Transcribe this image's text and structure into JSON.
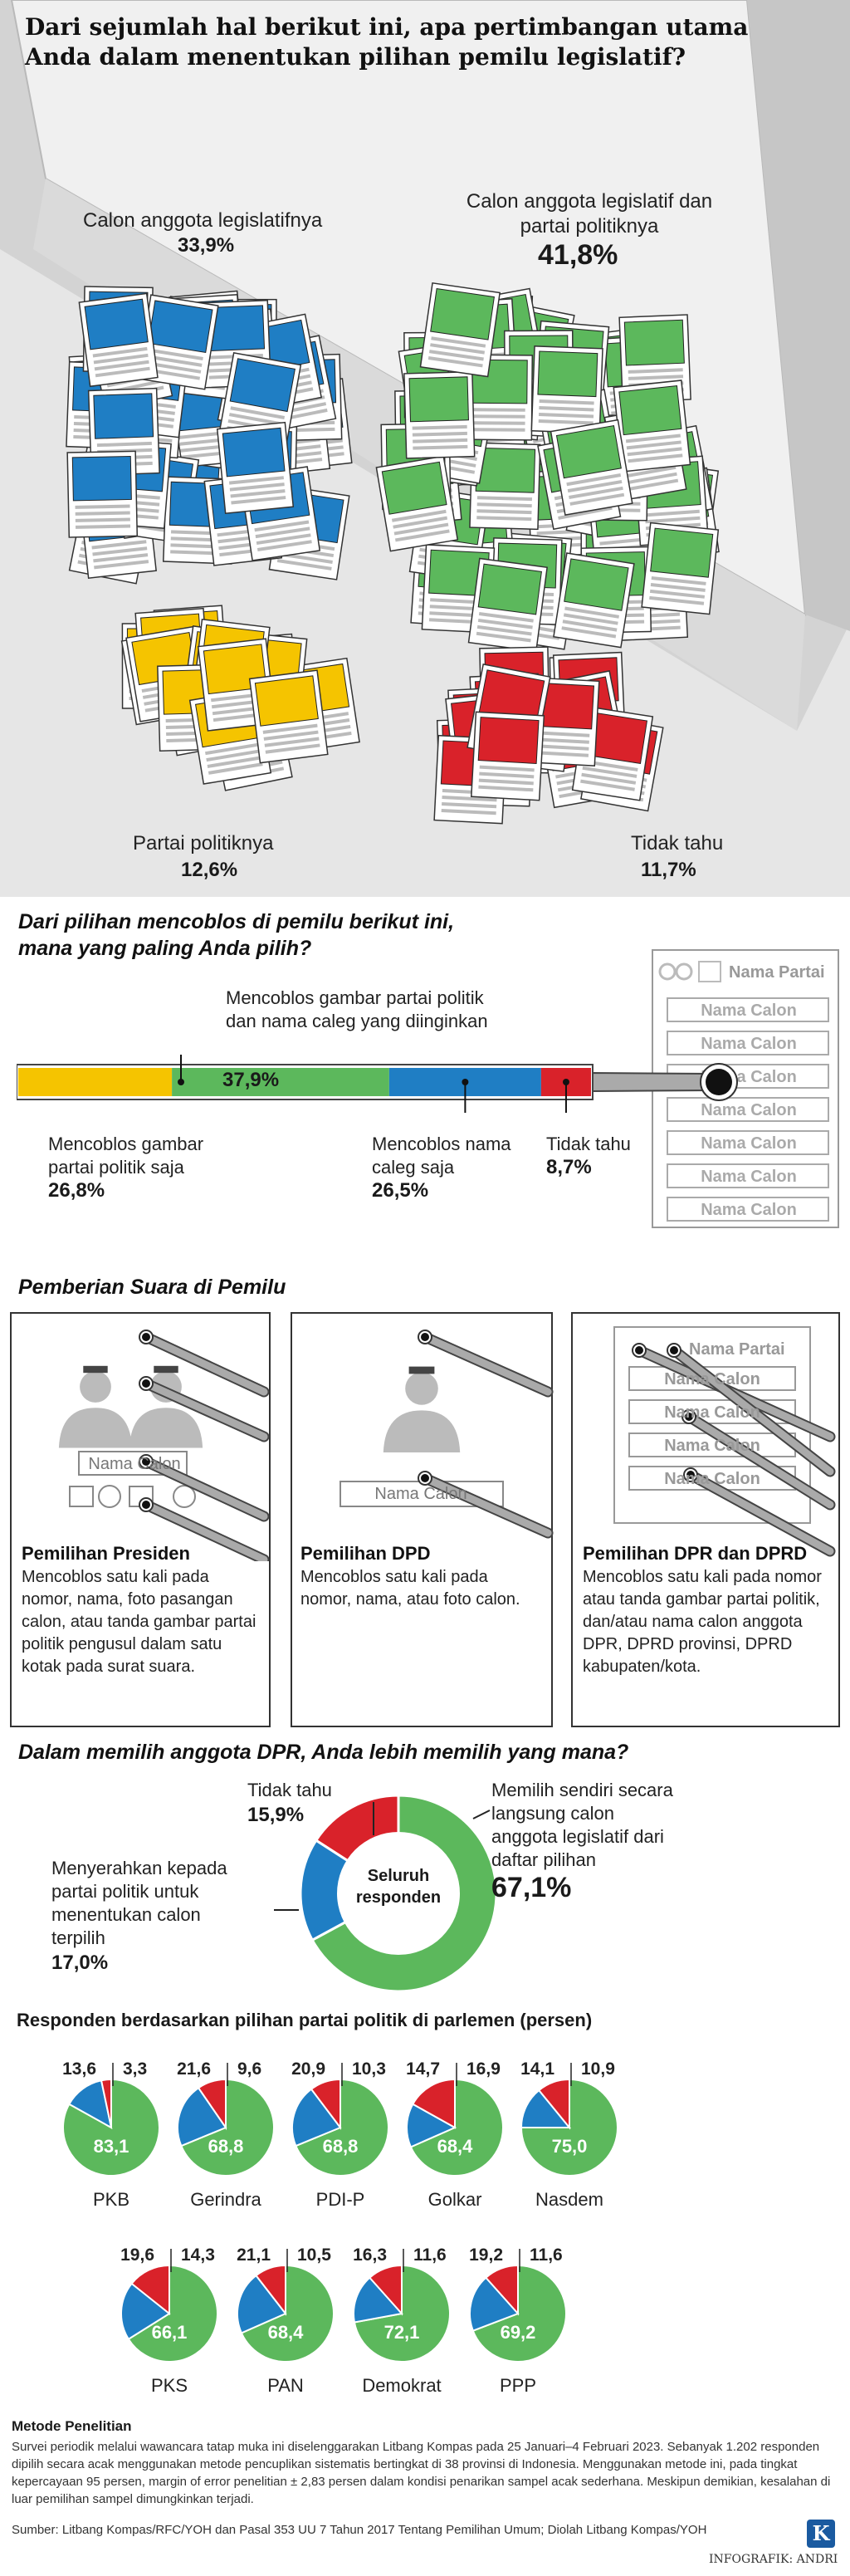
{
  "section1": {
    "question": [
      "Dari sejumlah hal berikut ini, apa pertimbangan utama",
      "Anda dalam menentukan pilihan pemilu legislatif?"
    ],
    "categories": [
      {
        "label": "Calon anggota legislatifnya",
        "value": "33,9%"
      },
      {
        "label": "Calon anggota legislatif dan partai politiknya",
        "value": "41,8%"
      },
      {
        "label": "Partai politiknya",
        "value": "12,6%"
      },
      {
        "label": "Tidak tahu",
        "value": "11,7%"
      }
    ]
  },
  "section2": {
    "question": [
      "Dari pilihan mencoblos di pemilu berikut ini,",
      "mana yang paling Anda pilih?"
    ],
    "labels": {
      "both": "Mencoblos gambar partai politik dan nama caleg yang diinginkan",
      "party": "Mencoblos gambar partai politik saja",
      "caleg": "Mencoblos nama caleg saja",
      "dk": "Tidak tahu"
    },
    "ballot_header": "Nama Partai",
    "ballot_row": "Nama Calon"
  },
  "section3": {
    "title": "Pemberian Suara di Pemilu",
    "panels": [
      {
        "title": "Pemilihan Presiden",
        "text": "Mencoblos satu kali pada nomor, nama, foto pasangan calon, atau tanda gambar partai politik pengusul dalam satu kotak pada surat suara.",
        "box_label": "Nama Calon"
      },
      {
        "title": "Pemilihan DPD",
        "text": "Mencoblos satu kali pada nomor, nama, atau foto calon.",
        "box_label": "Nama Calon"
      },
      {
        "title": "Pemilihan DPR dan DPRD",
        "text": "Mencoblos satu kali pada nomor atau tanda gambar partai politik, dan/atau nama calon anggota DPR, DPRD provinsi, DPRD kabupaten/kota.",
        "box_label": "Nama Partai",
        "row_label": "Nama Calon"
      }
    ]
  },
  "section4": {
    "question": "Dalam memilih anggota DPR, Anda lebih memilih yang mana?",
    "center_label": "Seluruh responden",
    "labels": {
      "dk": "Tidak tahu",
      "self": "Memilih sendiri secara langsung calon anggota legislatif dari daftar pilihan",
      "party": "Menyerahkan kepada partai politik untuk menentukan calon terpilih"
    }
  },
  "section5": {
    "title": "Responden berdasarkan pilihan partai politik di parlemen (persen)"
  },
  "method": {
    "title": "Metode Penelitian",
    "text": "Survei periodik melalui wawancara tatap muka ini diselenggarakan Litbang Kompas pada 25 Januari–4 Februari 2023. Sebanyak 1.202 responden dipilih secara acak menggunakan metode pencuplikan sistematis bertingkat di 38 provinsi di Indonesia. Menggunakan metode ini, pada tingkat kepercayaan 95 persen, margin of error penelitian ± 2,83 persen dalam kondisi penarikan sampel acak sederhana. Meskipun demikian, kesalahan di luar pemilihan sampel dimungkinkan terjadi.",
    "source": "Sumber: Litbang Kompas/RFC/YOH dan Pasal 353 UU 7 Tahun 2017 Tentang Pemilihan Umum; Diolah Litbang Kompas/YOH",
    "credit": "INFOGRAFIK: ANDRI",
    "logo": "K"
  },
  "colors": {
    "yellow": "#f5c400",
    "green": "#5cb85c",
    "blue": "#1f7ec4",
    "red": "#d9222a",
    "bg_gray": "#e6e6e6",
    "stylus": "#aaaaaa"
  },
  "chart_data": [
    {
      "type": "bar",
      "categories": [
        "Calon anggota legislatifnya",
        "Calon anggota legislatif dan partai politiknya",
        "Partai politiknya",
        "Tidak tahu"
      ],
      "values": [
        33.9,
        41.8,
        12.6,
        11.7
      ],
      "colors": [
        "#1f7ec4",
        "#5cb85c",
        "#f5c400",
        "#d9222a"
      ]
    },
    {
      "type": "bar",
      "categories": [
        "Mencoblos gambar partai politik saja",
        "Mencoblos gambar partai politik dan nama caleg yang diinginkan",
        "Mencoblos nama caleg saja",
        "Tidak tahu"
      ],
      "values": [
        26.8,
        37.9,
        26.5,
        8.7
      ],
      "value_labels": [
        "26,8%",
        "37,9%",
        "26,5%",
        "8,7%"
      ],
      "colors": [
        "#f5c400",
        "#5cb85c",
        "#1f7ec4",
        "#d9222a"
      ]
    },
    {
      "type": "pie",
      "categories": [
        "Memilih sendiri secara langsung calon anggota legislatif dari daftar pilihan",
        "Menyerahkan kepada partai politik untuk menentukan calon terpilih",
        "Tidak tahu"
      ],
      "values": [
        67.1,
        17.0,
        15.9
      ],
      "value_labels": [
        "67,1%",
        "17,0%",
        "15,9%"
      ],
      "colors": [
        "#5cb85c",
        "#1f7ec4",
        "#d9222a"
      ]
    },
    {
      "type": "pie",
      "series_order": [
        "Memilih sendiri",
        "Menyerahkan kepada partai",
        "Tidak tahu"
      ],
      "colors": [
        "#5cb85c",
        "#1f7ec4",
        "#d9222a"
      ],
      "parties": [
        {
          "name": "PKB",
          "values": [
            83.1,
            13.6,
            3.3
          ],
          "labels": [
            "83,1",
            "13,6",
            "3,3"
          ]
        },
        {
          "name": "Gerindra",
          "values": [
            68.8,
            21.6,
            9.6
          ],
          "labels": [
            "68,8",
            "21,6",
            "9,6"
          ]
        },
        {
          "name": "PDI-P",
          "values": [
            68.8,
            20.9,
            10.3
          ],
          "labels": [
            "68,8",
            "20,9",
            "10,3"
          ]
        },
        {
          "name": "Golkar",
          "values": [
            68.4,
            14.7,
            16.9
          ],
          "labels": [
            "68,4",
            "14,7",
            "16,9"
          ]
        },
        {
          "name": "Nasdem",
          "values": [
            75.0,
            14.1,
            10.9
          ],
          "labels": [
            "75,0",
            "14,1",
            "10,9"
          ]
        },
        {
          "name": "PKS",
          "values": [
            66.1,
            19.6,
            14.3
          ],
          "labels": [
            "66,1",
            "19,6",
            "14,3"
          ]
        },
        {
          "name": "PAN",
          "values": [
            68.4,
            21.1,
            10.5
          ],
          "labels": [
            "68,4",
            "21,1",
            "10,5"
          ]
        },
        {
          "name": "Demokrat",
          "values": [
            72.1,
            16.3,
            11.6
          ],
          "labels": [
            "72,1",
            "16,3",
            "11,6"
          ]
        },
        {
          "name": "PPP",
          "values": [
            69.2,
            19.2,
            11.6
          ],
          "labels": [
            "69,2",
            "19,2",
            "11,6"
          ]
        }
      ]
    }
  ]
}
